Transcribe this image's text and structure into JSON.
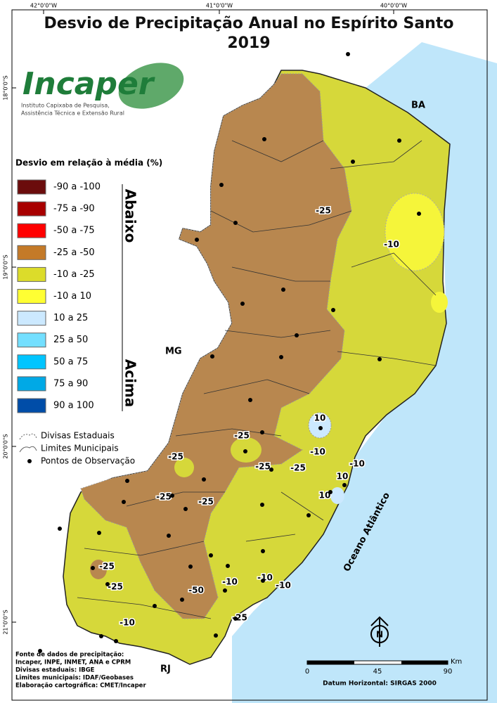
{
  "graticule": {
    "top": [
      "42°0'0\"W",
      "41°0'0\"W",
      "40°0'0\"W"
    ],
    "left": [
      "18°0'0\"S",
      "19°0'0\"S",
      "20°0'0\"S",
      "21°0'0\"S"
    ]
  },
  "title": "Desvio de Precipitação Anual no Espírito Santo",
  "subtitle": "2019",
  "logo": {
    "name": "Incaper",
    "line1": "Instituto Capixaba de Pesquisa,",
    "line2": "Assistência Técnica e Extensão Rural"
  },
  "legend": {
    "title": "Desvio em relação à média (%)",
    "items": [
      {
        "label": "-90 a -100",
        "color": "#6b0c0c"
      },
      {
        "label": "-75 a -90",
        "color": "#a80000"
      },
      {
        "label": "-50 a -75",
        "color": "#ff0000"
      },
      {
        "label": "-25 a -50",
        "color": "#c47a28"
      },
      {
        "label": "-10 a -25",
        "color": "#dcdc2a"
      },
      {
        "label": "-10 a 10",
        "color": "#ffff33"
      },
      {
        "label": "10 a 25",
        "color": "#cce9ff"
      },
      {
        "label": "25 a 50",
        "color": "#73dfff"
      },
      {
        "label": "50 a 75",
        "color": "#00c5ff"
      },
      {
        "label": "75 a 90",
        "color": "#00a9e6"
      },
      {
        "label": "90 a 100",
        "color": "#004da8"
      }
    ],
    "below": "Abaixo",
    "above": "Acima",
    "symbols": [
      "Divisas Estaduais",
      "Limites Municipais",
      "Pontos de Observação"
    ]
  },
  "regions": [
    "BA",
    "MG",
    "RJ"
  ],
  "ocean": "Oceano Atlântico",
  "contour_labels": [
    "-25",
    "-10",
    "10",
    "-25",
    "-10",
    "-25",
    "-25",
    "-10",
    "10",
    "10",
    "-25",
    "-25",
    "-25",
    "-25",
    "-25",
    "-50",
    "-10",
    "-10",
    "-10",
    "-25",
    "-10"
  ],
  "north": "N",
  "scale": {
    "unit": "Km",
    "labels": [
      "0",
      "45",
      "90"
    ]
  },
  "credits": [
    "Fonte de dados de precipitação:",
    "Incaper, INPE, INMET, ANA e CPRM",
    "Divisas estaduais: IBGE",
    "Limites municipais: IDAF/Geobases",
    "Elaboração cartográfica: CMET/Incaper"
  ],
  "datum": "Datum Horizontal: SIRGAS 2000"
}
